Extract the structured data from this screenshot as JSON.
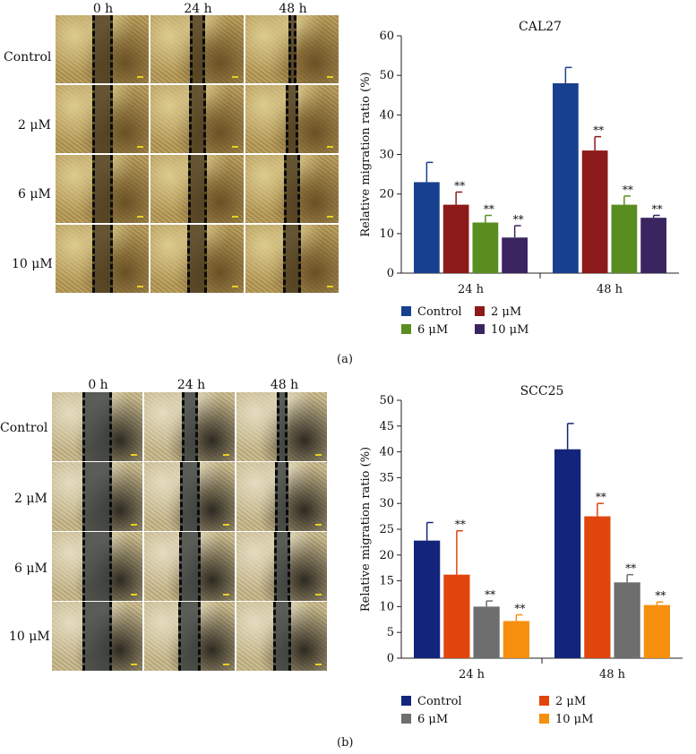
{
  "figure": {
    "panel_a": {
      "label": "(a)",
      "columns": [
        "0 h",
        "24 h",
        "48 h"
      ],
      "rows": [
        "Control",
        "2 μM",
        "6 μM",
        "10 μM"
      ],
      "tile_palette": {
        "base": "#b79a55",
        "light": "#dccb8e",
        "dark": "#6a5125",
        "gap": "#4a3a1e"
      },
      "scratch_width_pct": [
        [
          0.22,
          0.16,
          0.09
        ],
        [
          0.22,
          0.18,
          0.13
        ],
        [
          0.22,
          0.2,
          0.17
        ],
        [
          0.22,
          0.21,
          0.19
        ]
      ]
    },
    "panel_b": {
      "label": "(b)",
      "columns": [
        "0 h",
        "24 h",
        "48 h"
      ],
      "rows": [
        "Control",
        "2 μM",
        "6 μM",
        "10 μM"
      ],
      "tile_palette": {
        "base": "#c9b98a",
        "light": "#e4dcc0",
        "dark": "#2e2a22",
        "gap": "#3a4040"
      },
      "scratch_width_pct": [
        [
          0.33,
          0.18,
          0.12
        ],
        [
          0.33,
          0.22,
          0.15
        ],
        [
          0.33,
          0.24,
          0.18
        ],
        [
          0.33,
          0.25,
          0.2
        ]
      ]
    }
  },
  "chart_data": [
    {
      "type": "bar",
      "title": "CAL27",
      "ylabel": "Relative migration ratio (%)",
      "xlabel": "",
      "categories": [
        "24 h",
        "48 h"
      ],
      "ylim": [
        0,
        60
      ],
      "yticks": [
        0,
        10,
        20,
        30,
        40,
        50,
        60
      ],
      "series": [
        {
          "name": "Control",
          "color": "#17418e",
          "values": [
            23,
            48
          ],
          "errors": [
            5,
            4
          ],
          "sig": [
            "",
            ""
          ]
        },
        {
          "name": "2 μM",
          "color": "#8d1a1a",
          "values": [
            17.3,
            31
          ],
          "errors": [
            3.2,
            3.5
          ],
          "sig": [
            "**",
            "**"
          ]
        },
        {
          "name": "6 μM",
          "color": "#5a8d1f",
          "values": [
            12.8,
            17.3
          ],
          "errors": [
            1.8,
            2.2
          ],
          "sig": [
            "**",
            "**"
          ]
        },
        {
          "name": "10 μM",
          "color": "#3a2560",
          "values": [
            9,
            14
          ],
          "errors": [
            3,
            0.6
          ],
          "sig": [
            "**",
            "**"
          ]
        }
      ],
      "legend": {
        "placement": "bottom",
        "columns": 2
      },
      "grid": false
    },
    {
      "type": "bar",
      "title": "SCC25",
      "ylabel": "Relative migration ratio (%)",
      "xlabel": "",
      "categories": [
        "24 h",
        "48 h"
      ],
      "ylim": [
        0,
        50
      ],
      "yticks": [
        0,
        5,
        10,
        15,
        20,
        25,
        30,
        35,
        40,
        45,
        50
      ],
      "series": [
        {
          "name": "Control",
          "color": "#13257a",
          "values": [
            22.8,
            40.5
          ],
          "errors": [
            3.5,
            5
          ],
          "sig": [
            "",
            ""
          ]
        },
        {
          "name": "2 μM",
          "color": "#e0450e",
          "values": [
            16.2,
            27.5
          ],
          "errors": [
            8.5,
            2.5
          ],
          "sig": [
            "**",
            "**"
          ]
        },
        {
          "name": "6 μM",
          "color": "#6e6e6e",
          "values": [
            10,
            14.7
          ],
          "errors": [
            1.1,
            1.5
          ],
          "sig": [
            "**",
            "**"
          ]
        },
        {
          "name": "10 μM",
          "color": "#f68f0d",
          "values": [
            7.2,
            10.3
          ],
          "errors": [
            1.2,
            0.6
          ],
          "sig": [
            "**",
            "**"
          ]
        }
      ],
      "legend": {
        "placement": "bottom",
        "columns": 2
      },
      "grid": false
    }
  ]
}
